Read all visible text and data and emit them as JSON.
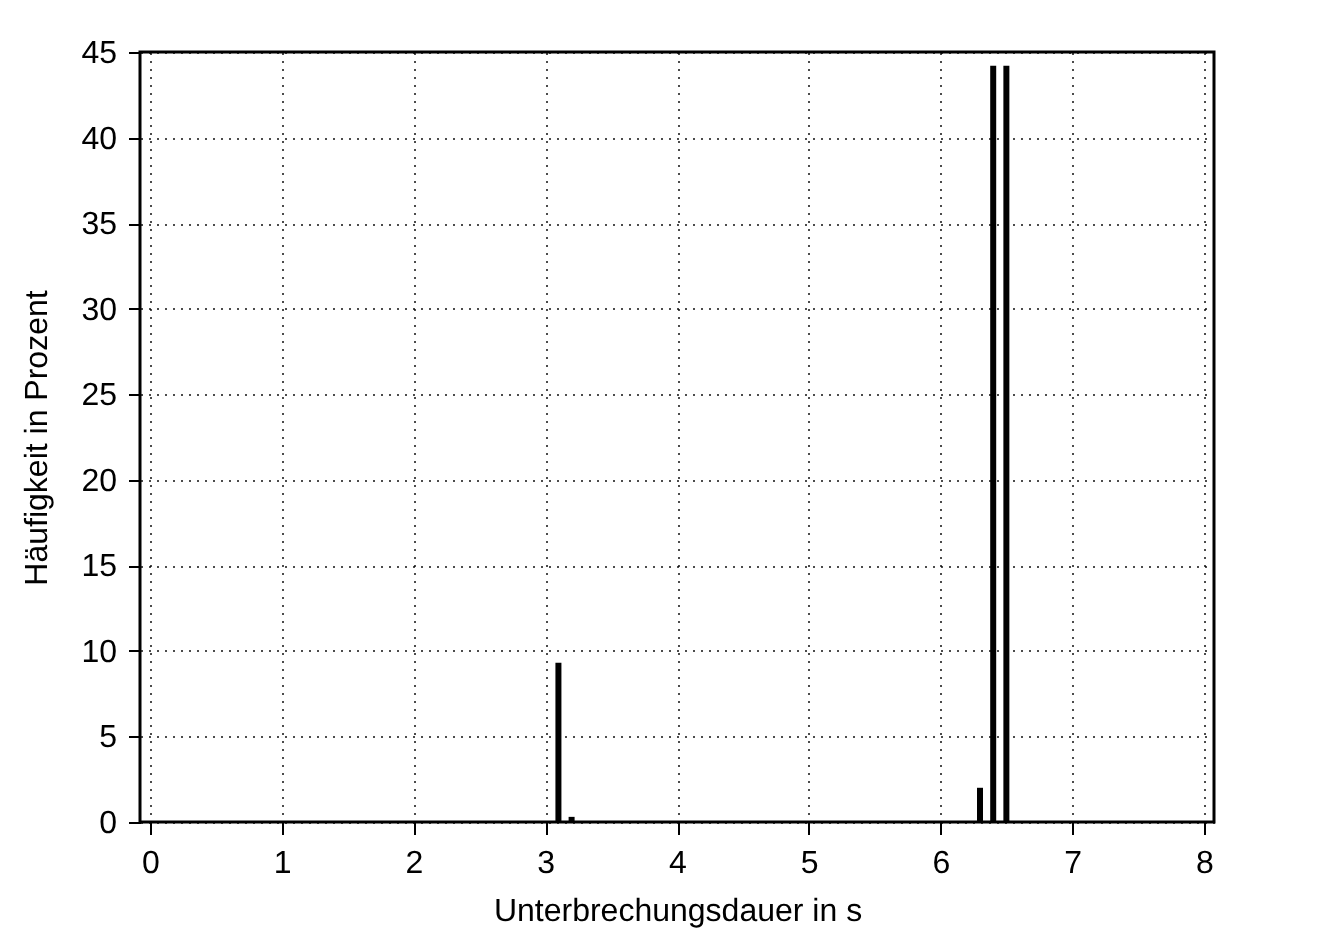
{
  "chart_data": {
    "type": "bar",
    "xlabel": "Unterbrechungsdauer in s",
    "ylabel": "Häufigkeit in Prozent",
    "x": [
      3.1,
      3.2,
      6.3,
      6.4,
      6.5
    ],
    "values": [
      9.3,
      0.3,
      2,
      44.2,
      44.2
    ],
    "color": "#000000",
    "xlim": [
      0,
      8
    ],
    "xticks": [
      0,
      1,
      2,
      3,
      4,
      5,
      6,
      7,
      8
    ],
    "ylim": [
      0,
      45
    ],
    "yticks": [
      0,
      5,
      10,
      15,
      20,
      25,
      30,
      35,
      40,
      45
    ],
    "grid": true
  }
}
